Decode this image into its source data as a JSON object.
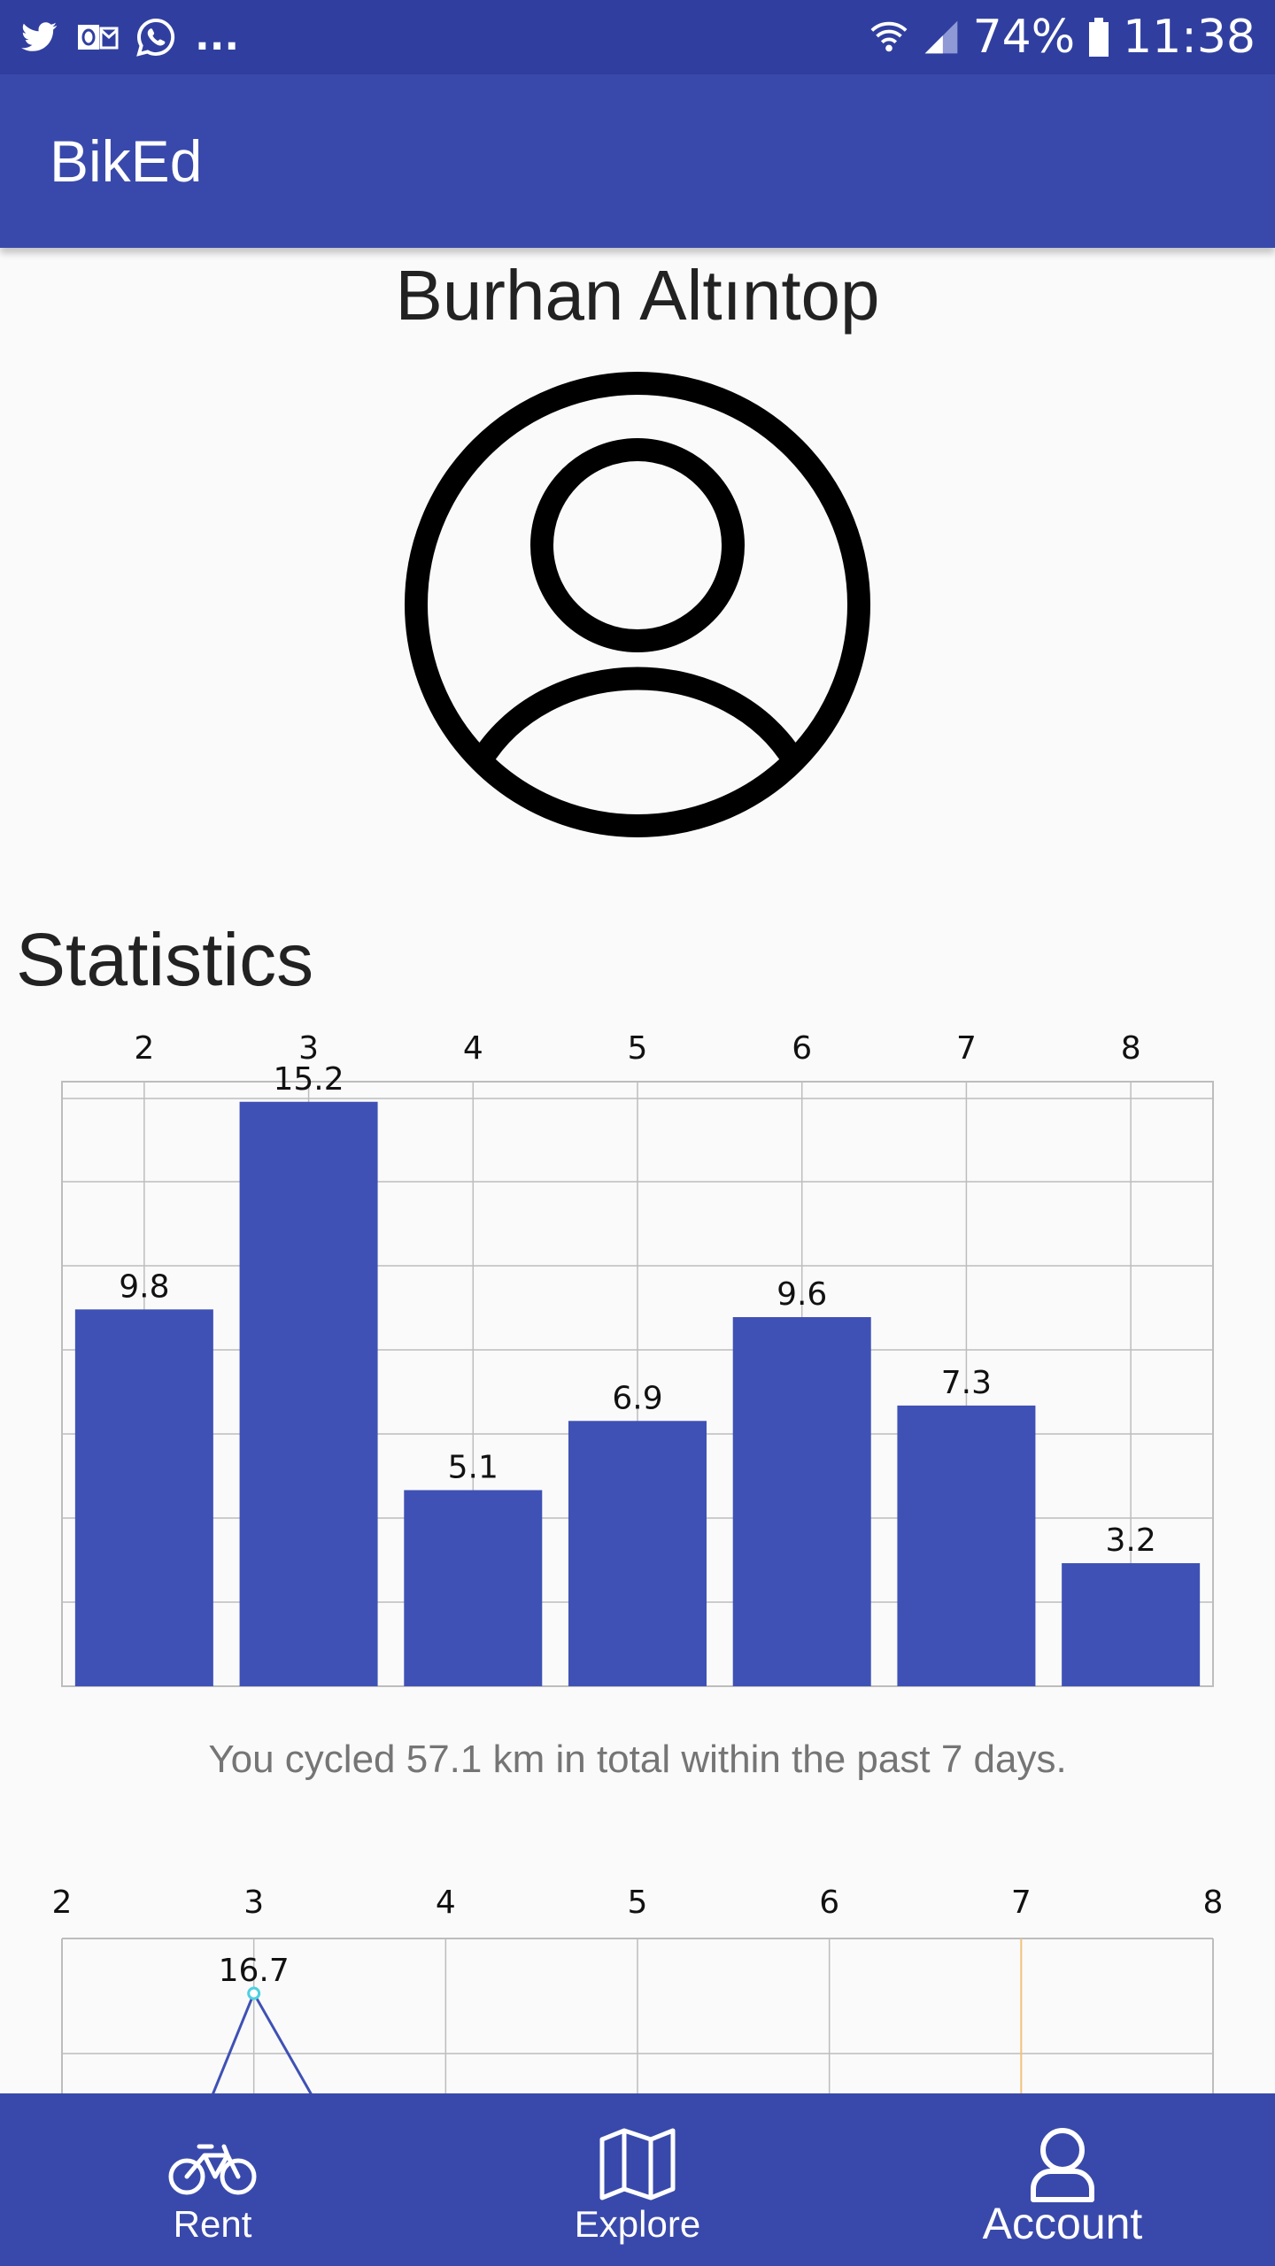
{
  "status_bar": {
    "battery": "74%",
    "time": "11:38",
    "notification_icons": [
      "twitter-icon",
      "outlook-icon",
      "whatsapp-icon"
    ],
    "overflow": "..."
  },
  "app_bar": {
    "title": "BikEd"
  },
  "profile": {
    "name": "Burhan Altıntop"
  },
  "statistics": {
    "title": "Statistics",
    "summary": "You cycled 57.1 km in total within the past 7 days."
  },
  "chart_data": [
    {
      "type": "bar",
      "categories": [
        "2",
        "3",
        "4",
        "5",
        "6",
        "7",
        "8"
      ],
      "values": [
        9.8,
        15.2,
        5.1,
        6.9,
        9.6,
        7.3,
        3.2
      ],
      "ylim": [
        0,
        16
      ],
      "grid": true,
      "color": "#3f51b5"
    },
    {
      "type": "line",
      "x": [
        2,
        3,
        4,
        5,
        6,
        7,
        8
      ],
      "points": [
        {
          "x": 3,
          "y": 16.7
        }
      ],
      "labels": [
        "16.7"
      ],
      "ylim": [
        0,
        18
      ],
      "grid": true,
      "color": "#3f51b5",
      "highlight_x": 7,
      "highlight_color": "#f0c27b"
    }
  ],
  "nav": {
    "items": [
      {
        "label": "Rent",
        "icon": "bicycle-icon"
      },
      {
        "label": "Explore",
        "icon": "map-icon"
      },
      {
        "label": "Account",
        "icon": "account-icon"
      }
    ],
    "active": "Account"
  },
  "colors": {
    "status_bar": "#303f9f",
    "primary": "#3949ab",
    "bar": "#3f51b5",
    "background": "#fafafa"
  }
}
